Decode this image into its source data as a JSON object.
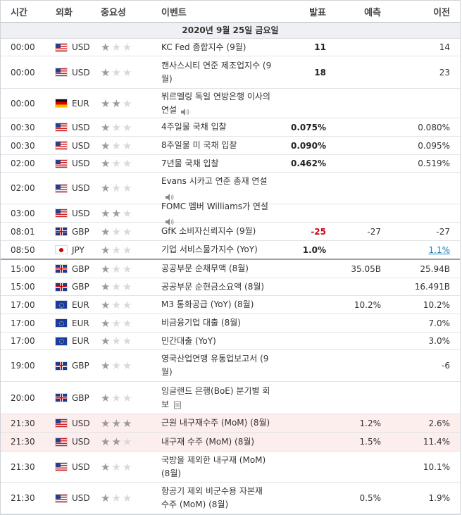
{
  "headers": {
    "time": "시간",
    "currency": "외화",
    "importance": "중요성",
    "event": "이벤트",
    "actual": "발표",
    "forecast": "예측",
    "previous": "이전"
  },
  "date_label": "2020년 9월 25일 금요일",
  "colors": {
    "negative": "#d0021b",
    "revised": "#1a7fc1",
    "highlight": "#fdeeee"
  },
  "rows": [
    {
      "time": "00:00",
      "flag": "us",
      "currency": "USD",
      "stars": 1,
      "event": "KC Fed 종합지수 (9월)",
      "actual": "11",
      "forecast": "",
      "previous": "14",
      "h": 25
    },
    {
      "time": "00:00",
      "flag": "us",
      "currency": "USD",
      "stars": 1,
      "event": "캔사스시티 연준 제조업지수 (9월)",
      "actual": "18",
      "forecast": "",
      "previous": "23",
      "h": 46
    },
    {
      "time": "00:00",
      "flag": "de",
      "currency": "EUR",
      "stars": 2,
      "event": "뷔르멜링 독일 연방은행 이사의 연설",
      "icon": "speaker-icon",
      "actual": "",
      "forecast": "",
      "previous": "",
      "h": 42
    },
    {
      "time": "00:30",
      "flag": "us",
      "currency": "USD",
      "stars": 1,
      "event": "4주일물 국채 입찰",
      "actual": "0.075%",
      "forecast": "",
      "previous": "0.080%",
      "h": 26
    },
    {
      "time": "00:30",
      "flag": "us",
      "currency": "USD",
      "stars": 1,
      "event": "8주일물 미 국채 입찰",
      "actual": "0.090%",
      "forecast": "",
      "previous": "0.095%",
      "h": 26
    },
    {
      "time": "02:00",
      "flag": "us",
      "currency": "USD",
      "stars": 1,
      "event": "7년물 국채 입찰",
      "actual": "0.462%",
      "forecast": "",
      "previous": "0.519%",
      "h": 25
    },
    {
      "time": "02:00",
      "flag": "us",
      "currency": "USD",
      "stars": 1,
      "event": "Evans 시카고 연준 총재 연설",
      "icon": "speaker-icon",
      "actual": "",
      "forecast": "",
      "previous": "",
      "h": 45
    },
    {
      "time": "03:00",
      "flag": "us",
      "currency": "USD",
      "stars": 2,
      "event": "FOMC 멤버 Williams가 연설",
      "icon": "speaker-icon",
      "actual": "",
      "forecast": "",
      "previous": "",
      "h": 26
    },
    {
      "time": "08:01",
      "flag": "gb",
      "currency": "GBP",
      "stars": 1,
      "event": "GfK 소비자신뢰지수 (9월)",
      "actual": "-25",
      "actual_neg": true,
      "forecast": "-27",
      "previous": "-27",
      "h": 26
    },
    {
      "time": "08:50",
      "flag": "jp",
      "currency": "JPY",
      "stars": 1,
      "event": "기업 서비스물가지수 (YoY)",
      "actual": "1.0%",
      "forecast": "",
      "previous": "1.1%",
      "prev_revised": true,
      "h": 27,
      "sep": true
    },
    {
      "time": "15:00",
      "flag": "gb",
      "currency": "GBP",
      "stars": 1,
      "event": "공공부문 순채무액 (8월)",
      "actual": "",
      "forecast": "35.05B",
      "previous": "25.94B",
      "h": 26
    },
    {
      "time": "15:00",
      "flag": "gb",
      "currency": "GBP",
      "stars": 1,
      "event": "공공부문 순현금소요액 (8월)",
      "actual": "",
      "forecast": "",
      "previous": "16.491B",
      "h": 25
    },
    {
      "time": "17:00",
      "flag": "eu",
      "currency": "EUR",
      "stars": 1,
      "event": "M3 통화공급 (YoY) (8월)",
      "actual": "",
      "forecast": "10.2%",
      "previous": "10.2%",
      "h": 26
    },
    {
      "time": "17:00",
      "flag": "eu",
      "currency": "EUR",
      "stars": 1,
      "event": "비금융기업 대출 (8월)",
      "actual": "",
      "forecast": "",
      "previous": "7.0%",
      "h": 26
    },
    {
      "time": "17:00",
      "flag": "eu",
      "currency": "EUR",
      "stars": 1,
      "event": "민간대출 (YoY)",
      "actual": "",
      "forecast": "",
      "previous": "3.0%",
      "h": 25
    },
    {
      "time": "19:00",
      "flag": "gb",
      "currency": "GBP",
      "stars": 1,
      "event": "영국산업연맹 유통업보고서 (9월)",
      "actual": "",
      "forecast": "",
      "previous": "-6",
      "h": 45
    },
    {
      "time": "20:00",
      "flag": "gb",
      "currency": "GBP",
      "stars": 1,
      "event": "잉글랜드 은행(BoE) 분기별 회보",
      "icon": "document-icon",
      "actual": "",
      "forecast": "",
      "previous": "",
      "h": 46
    },
    {
      "time": "21:30",
      "flag": "us",
      "currency": "USD",
      "stars": 3,
      "event": "근원 내구재수주 (MoM) (8월)",
      "actual": "",
      "forecast": "1.2%",
      "previous": "2.6%",
      "h": 26,
      "hl": true
    },
    {
      "time": "21:30",
      "flag": "us",
      "currency": "USD",
      "stars": 2,
      "event": "내구재 수주 (MoM) (8월)",
      "actual": "",
      "forecast": "1.5%",
      "previous": "11.4%",
      "h": 27,
      "hl": true
    },
    {
      "time": "21:30",
      "flag": "us",
      "currency": "USD",
      "stars": 1,
      "event": "국방을 제외한 내구재 (MoM) (8월)",
      "actual": "",
      "forecast": "",
      "previous": "10.1%",
      "h": 44
    },
    {
      "time": "21:30",
      "flag": "us",
      "currency": "USD",
      "stars": 1,
      "event": "항공기 제외 비군수용 자본재 수주 (MoM) (8월)",
      "actual": "",
      "forecast": "0.5%",
      "previous": "1.9%",
      "h": 45
    }
  ]
}
